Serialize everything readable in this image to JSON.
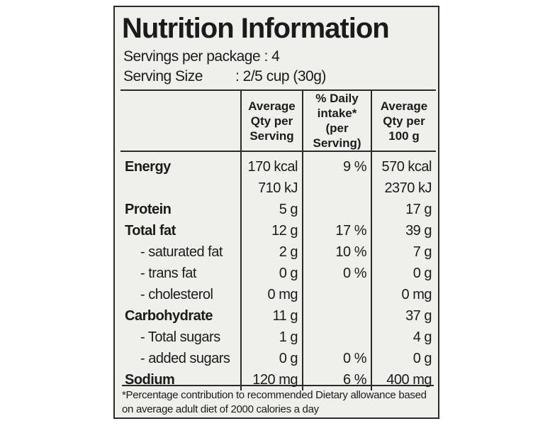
{
  "header": {
    "title": "Nutrition Information",
    "servings": "Servings per package : 4",
    "serving_size_label": "Serving Size",
    "serving_size_value": ": 2/5 cup (30g)"
  },
  "table": {
    "columns": [
      "Average Qty per Serving",
      "% Daily intake* (per Serving)",
      "Average Qty per 100 g"
    ],
    "rows": [
      {
        "label": "Energy",
        "values": [
          "170 kcal",
          "9 %",
          "570 kcal"
        ]
      },
      {
        "label": null,
        "values": [
          "710 kJ",
          null,
          "2370 kJ"
        ]
      },
      {
        "label": "Protein",
        "values": [
          "5 g",
          null,
          "17 g"
        ]
      },
      {
        "label": "Total fat",
        "values": [
          "12 g",
          "17 %",
          "39 g"
        ]
      },
      {
        "label": "- saturated fat",
        "values": [
          "2 g",
          "10 %",
          "7 g"
        ]
      },
      {
        "label": "- trans fat",
        "values": [
          "0 g",
          "0 %",
          "0 g"
        ]
      },
      {
        "label": "- cholesterol",
        "values": [
          "0 mg",
          null,
          "0 mg"
        ]
      },
      {
        "label": "Carbohydrate",
        "values": [
          "11 g",
          null,
          "37 g"
        ]
      },
      {
        "label": "- Total sugars",
        "values": [
          "1 g",
          null,
          "4 g"
        ]
      },
      {
        "label": "- added sugars",
        "values": [
          "0 g",
          "0 %",
          "0 g"
        ]
      },
      {
        "label": "Sodium",
        "values": [
          "120 mg",
          "6 %",
          "400 mg"
        ]
      }
    ]
  },
  "footnote": "*Percentage contribution to recommended Dietary allowance based on average adult diet of 2000 calories a day"
}
